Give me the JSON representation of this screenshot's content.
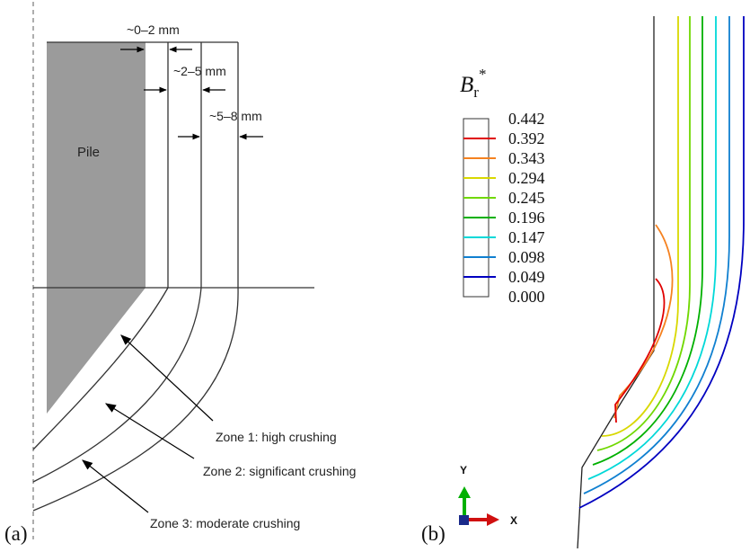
{
  "panel_a": {
    "label": "(a)",
    "pile_label": "Pile",
    "dim_1": "~0–2 mm",
    "dim_2": "~2–5 mm",
    "dim_3": "~5–8 mm",
    "zone_1": "Zone 1: high crushing",
    "zone_2": "Zone 2: significant crushing",
    "zone_3": "Zone 3: moderate crushing"
  },
  "panel_b": {
    "label": "(b)",
    "legend_symbol": "B",
    "legend_subscript": "r",
    "legend_superscript": "*",
    "legend_values": [
      "0.442",
      "0.392",
      "0.343",
      "0.294",
      "0.245",
      "0.196",
      "0.147",
      "0.098",
      "0.049",
      "0.000"
    ],
    "legend_colors": [
      "#ffffff",
      "#e00000",
      "#f58220",
      "#d8d800",
      "#70d800",
      "#00b000",
      "#00d8d8",
      "#1080d0",
      "#0000c0",
      "#ffffff"
    ],
    "axis_y": "Y",
    "axis_x": "X"
  },
  "colors": {
    "pile_fill": "#9b9b9b",
    "line": "#333333",
    "axis_y_arrow": "#00b000",
    "axis_x_arrow": "#d01010",
    "axis_origin": "#1a2a8a"
  }
}
